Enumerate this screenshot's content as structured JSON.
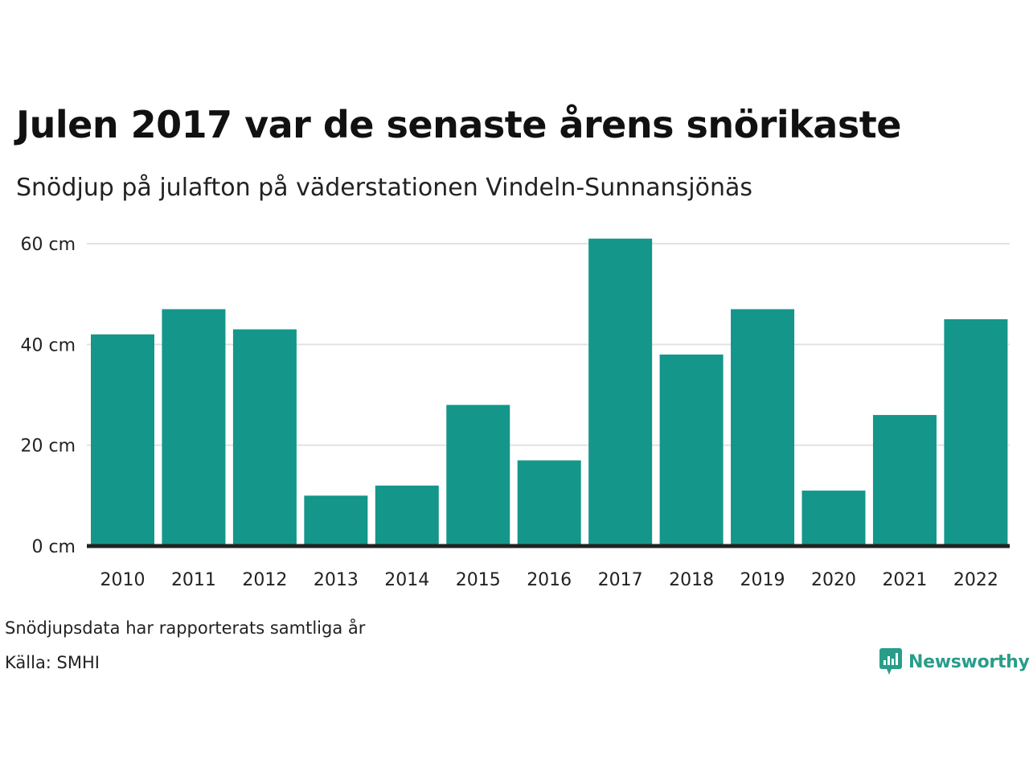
{
  "header": {
    "title": "Julen 2017 var de senaste årens snörikaste",
    "subtitle": "Snödjup på julafton på väderstationen Vindeln-Sunnansjönäs"
  },
  "footer": {
    "note": "Snödjupsdata har rapporterats samtliga år",
    "source": "Källa: SMHI",
    "brand": "Newsworthy",
    "brand_icon": "newsworthy-logo-icon"
  },
  "colors": {
    "bar": "#14968a",
    "grid": "#e2e2e2",
    "baseline": "#222222",
    "brand": "#2a9d8a"
  },
  "chart_data": {
    "type": "bar",
    "title": "Julen 2017 var de senaste årens snörikaste",
    "subtitle": "Snödjup på julafton på väderstationen Vindeln-Sunnansjönäs",
    "categories": [
      "2010",
      "2011",
      "2012",
      "2013",
      "2014",
      "2015",
      "2016",
      "2017",
      "2018",
      "2019",
      "2020",
      "2021",
      "2022"
    ],
    "values": [
      42,
      47,
      43,
      10,
      12,
      28,
      17,
      61,
      38,
      47,
      11,
      26,
      45
    ],
    "unit": "cm",
    "ylim": [
      0,
      60
    ],
    "yticks": [
      0,
      20,
      40,
      60
    ],
    "ytick_labels": [
      "0 cm",
      "20 cm",
      "40 cm",
      "60 cm"
    ],
    "grid": true,
    "xlabel": "",
    "ylabel": ""
  }
}
